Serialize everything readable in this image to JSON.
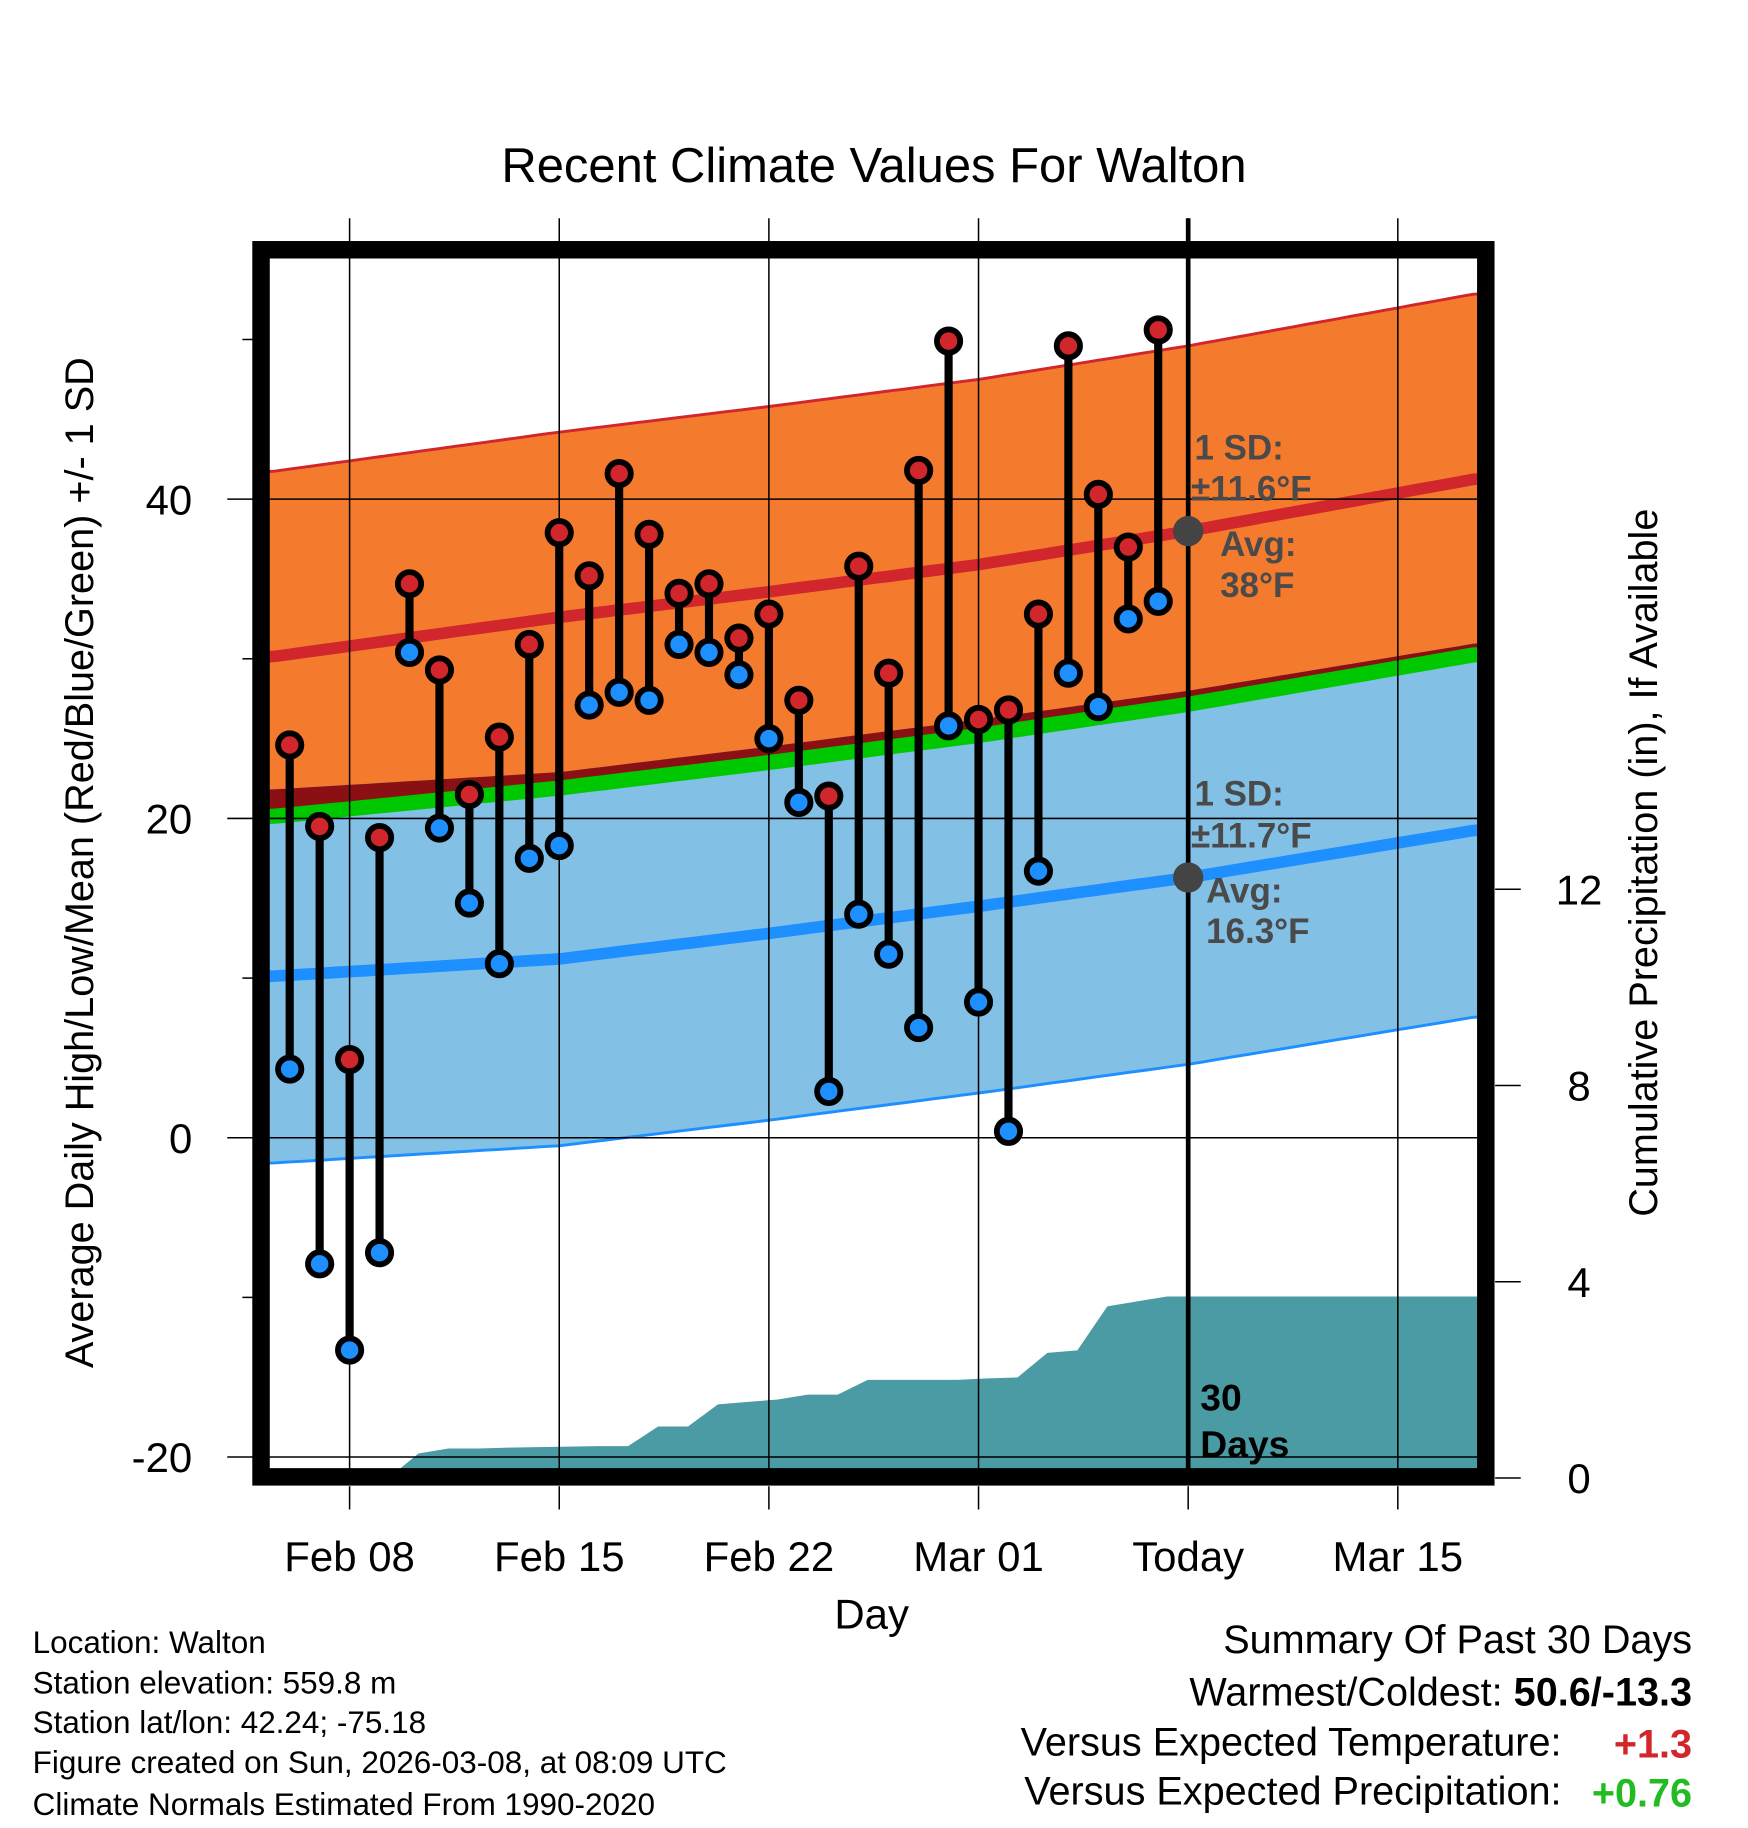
{
  "chart_data": {
    "type": "line",
    "title": "Recent Climate Values For Walton",
    "xlabel": "Day",
    "ylabel": "Average Daily High/Low/Mean (Red/Blue/Green) +/- 1 SD",
    "y2label": "Cumulative Precipitation (in), If Available",
    "ylim": [
      -20.7,
      55
    ],
    "y2lim": [
      0,
      16
    ],
    "x_ticks": [
      {
        "day": 0,
        "label": "Feb 08"
      },
      {
        "day": 7,
        "label": "Feb 15"
      },
      {
        "day": 14,
        "label": "Feb 22"
      },
      {
        "day": 21,
        "label": "Mar 01"
      },
      {
        "day": 28,
        "label": "Today"
      },
      {
        "day": 35,
        "label": "Mar 15"
      }
    ],
    "y_ticks": [
      40,
      20,
      0,
      -20
    ],
    "y_minor_ticks": [
      50,
      30,
      10,
      -10
    ],
    "y2_ticks": [
      12,
      8,
      4,
      0
    ],
    "today_day": 28,
    "days": [
      -2,
      -1,
      0,
      1,
      2,
      3,
      4,
      5,
      6,
      7,
      8,
      9,
      10,
      11,
      12,
      13,
      14,
      15,
      16,
      17,
      18,
      19,
      20,
      21,
      22,
      23,
      24,
      25,
      26,
      27
    ],
    "highs": [
      24.6,
      19.5,
      4.9,
      18.8,
      34.7,
      29.3,
      21.5,
      25.1,
      30.9,
      37.9,
      35.2,
      41.6,
      37.8,
      34.1,
      34.7,
      31.3,
      32.8,
      27.4,
      21.4,
      35.8,
      29.1,
      41.8,
      49.9,
      26.2,
      26.8,
      32.8,
      49.6,
      40.3,
      37.0,
      50.6
    ],
    "lows": [
      4.3,
      -7.9,
      -13.3,
      -7.2,
      30.4,
      19.4,
      14.7,
      10.9,
      17.5,
      18.3,
      27.1,
      27.9,
      27.4,
      30.9,
      30.4,
      29.0,
      25.0,
      21.0,
      2.9,
      14.0,
      11.5,
      6.9,
      25.8,
      8.5,
      0.4,
      16.7,
      29.1,
      27.0,
      32.5,
      33.6
    ],
    "precip_cumulative": [
      0,
      0,
      0,
      0,
      0.5,
      0.6,
      0.6,
      0.62,
      0.63,
      0.64,
      0.65,
      0.65,
      1.05,
      1.05,
      1.5,
      1.55,
      1.6,
      1.7,
      1.7,
      2.0,
      2.0,
      2.0,
      2.0,
      2.03,
      2.05,
      2.55,
      2.6,
      3.5,
      3.6,
      3.7
    ],
    "normals": {
      "days": [
        -2.7,
        7,
        14,
        21,
        28,
        37.7
      ],
      "high_mean": [
        30.1,
        32.6,
        34.2,
        35.9,
        38.0,
        41.3
      ],
      "low_mean": [
        10.1,
        11.2,
        12.8,
        14.5,
        16.3,
        19.3
      ],
      "high_sd": 11.6,
      "low_sd": 11.7
    },
    "annotations": {
      "high_sd_label": "1 SD:",
      "high_sd_value": "±11.6°F",
      "high_avg_label": "Avg:",
      "high_avg_value": "38°F",
      "low_sd_label": "1 SD:",
      "low_sd_value": "±11.7°F",
      "low_avg_label": "Avg:",
      "low_avg_value": "16.3°F",
      "window_line1": "30",
      "window_line2": "Days"
    },
    "colors": {
      "high": "#d1262b",
      "low": "#1e8fff",
      "mean": "#00c800",
      "high_band": "#f47b2e",
      "low_band": "#82c0e6",
      "overlap": "#8b1014",
      "precip": "#4a9ba3"
    }
  },
  "footer": {
    "location": "Location: Walton",
    "elevation": "Station elevation: 559.8 m",
    "latlon": "Station lat/lon: 42.24; -75.18",
    "created": "Figure created on Sun, 2026-03-08, at 08:09 UTC",
    "normals": "Climate Normals Estimated From 1990-2020"
  },
  "summary": {
    "title": "Summary Of Past 30 Days",
    "warmest_label": "Warmest/Coldest: ",
    "warmest_value": "50.6/-13.3",
    "temp_label": "Versus Expected Temperature:",
    "temp_value": "+1.3",
    "precip_label": "Versus Expected Precipitation:",
    "precip_value": "+0.76",
    "temp_color": "#d1262b",
    "precip_color": "#22bb22"
  }
}
